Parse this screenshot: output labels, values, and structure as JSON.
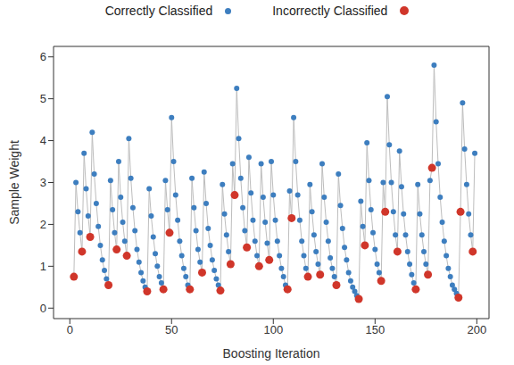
{
  "chart_data": {
    "type": "scatter",
    "x_label": "Boosting Iteration",
    "y_label": "Sample Weight",
    "legend": "top",
    "line_style": "solid",
    "xlim": [
      -8,
      206
    ],
    "xticks": [
      0,
      50,
      100,
      150,
      200
    ],
    "ylim": [
      -0.25,
      6.25
    ],
    "yticks": [
      0,
      1,
      2,
      3,
      4,
      5,
      6
    ],
    "x": [
      2,
      3,
      4,
      5,
      6,
      7,
      8,
      9,
      10,
      11,
      12,
      13,
      14,
      15,
      16,
      17,
      18,
      19,
      20,
      21,
      22,
      23,
      24,
      25,
      26,
      27,
      28,
      29,
      30,
      31,
      32,
      33,
      34,
      35,
      36,
      37,
      38,
      39,
      40,
      41,
      42,
      43,
      44,
      45,
      46,
      47,
      48,
      49,
      50,
      51,
      52,
      53,
      54,
      55,
      56,
      57,
      58,
      59,
      60,
      61,
      62,
      63,
      64,
      65,
      66,
      67,
      68,
      69,
      70,
      71,
      72,
      73,
      74,
      75,
      76,
      77,
      78,
      79,
      80,
      81,
      82,
      83,
      84,
      85,
      86,
      87,
      88,
      89,
      90,
      91,
      92,
      93,
      94,
      95,
      96,
      97,
      98,
      99,
      100,
      101,
      102,
      103,
      104,
      105,
      106,
      107,
      108,
      109,
      110,
      111,
      112,
      113,
      114,
      115,
      116,
      117,
      118,
      119,
      120,
      121,
      122,
      123,
      124,
      125,
      126,
      127,
      128,
      129,
      130,
      131,
      132,
      133,
      134,
      135,
      136,
      137,
      138,
      139,
      140,
      141,
      142,
      143,
      144,
      145,
      146,
      147,
      148,
      149,
      150,
      151,
      152,
      153,
      154,
      155,
      156,
      157,
      158,
      159,
      160,
      161,
      162,
      163,
      164,
      165,
      166,
      167,
      168,
      169,
      170,
      171,
      172,
      173,
      174,
      175,
      176,
      177,
      178,
      179,
      180,
      181,
      182,
      183,
      184,
      185,
      186,
      187,
      188,
      189,
      190,
      191,
      192,
      193,
      194,
      195,
      196,
      197,
      198,
      199
    ],
    "series": [
      {
        "name": "Correctly Classified",
        "color": "#3d7ebf",
        "marker": "circle",
        "values": [
          null,
          3.0,
          2.3,
          1.8,
          null,
          3.7,
          2.85,
          2.2,
          null,
          4.2,
          3.2,
          2.5,
          1.95,
          1.5,
          1.15,
          0.9,
          0.7,
          null,
          3.05,
          2.35,
          1.8,
          null,
          3.5,
          2.65,
          2.05,
          1.6,
          null,
          4.05,
          3.1,
          2.4,
          1.85,
          1.4,
          1.1,
          0.85,
          0.65,
          0.5,
          null,
          2.85,
          2.2,
          1.7,
          1.3,
          1.0,
          0.75,
          0.6,
          null,
          3.05,
          2.35,
          null,
          4.55,
          3.5,
          2.7,
          2.1,
          1.6,
          1.25,
          0.95,
          0.75,
          0.55,
          null,
          3.1,
          2.4,
          1.85,
          1.4,
          1.1,
          null,
          3.25,
          2.5,
          1.9,
          1.5,
          1.15,
          0.9,
          0.7,
          0.55,
          null,
          2.95,
          2.25,
          1.75,
          1.35,
          null,
          3.45,
          null,
          5.25,
          4.05,
          3.1,
          2.4,
          1.85,
          null,
          3.6,
          2.75,
          2.1,
          1.6,
          1.25,
          null,
          3.45,
          2.65,
          2.05,
          1.55,
          null,
          3.5,
          2.7,
          2.1,
          1.6,
          1.25,
          0.95,
          0.75,
          0.55,
          null,
          2.8,
          null,
          4.55,
          3.5,
          2.7,
          2.1,
          1.6,
          1.25,
          0.95,
          null,
          2.95,
          2.3,
          1.75,
          1.35,
          1.05,
          null,
          3.45,
          2.65,
          2.05,
          1.6,
          1.2,
          0.95,
          0.75,
          null,
          3.2,
          2.45,
          1.9,
          1.45,
          1.15,
          0.85,
          0.65,
          0.5,
          0.4,
          0.3,
          null,
          2.55,
          1.95,
          null,
          3.95,
          3.05,
          2.35,
          1.8,
          1.4,
          1.05,
          0.85,
          null,
          3.0,
          null,
          5.05,
          3.9,
          3.0,
          2.3,
          1.75,
          null,
          3.75,
          2.9,
          2.25,
          1.75,
          1.35,
          1.05,
          0.8,
          0.6,
          null,
          2.95,
          2.25,
          1.75,
          1.35,
          1.05,
          null,
          3.05,
          null,
          5.8,
          4.45,
          3.45,
          2.65,
          2.05,
          1.6,
          1.25,
          0.95,
          0.75,
          0.55,
          0.45,
          0.35,
          null,
          null,
          4.9,
          3.8,
          2.95,
          2.25,
          1.75,
          null,
          3.7
        ]
      },
      {
        "name": "Incorrectly Classified",
        "color": "#d0362a",
        "marker": "circle",
        "values": [
          0.75,
          null,
          null,
          null,
          1.35,
          null,
          null,
          null,
          1.7,
          null,
          null,
          null,
          null,
          null,
          null,
          null,
          null,
          0.55,
          null,
          null,
          null,
          1.4,
          null,
          null,
          null,
          null,
          1.25,
          null,
          null,
          null,
          null,
          null,
          null,
          null,
          null,
          null,
          0.4,
          null,
          null,
          null,
          null,
          null,
          null,
          null,
          0.45,
          null,
          null,
          1.8,
          null,
          null,
          null,
          null,
          null,
          null,
          null,
          null,
          null,
          0.45,
          null,
          null,
          null,
          null,
          null,
          0.85,
          null,
          null,
          null,
          null,
          null,
          null,
          null,
          null,
          0.42,
          null,
          null,
          null,
          null,
          1.05,
          null,
          2.7,
          null,
          null,
          null,
          null,
          null,
          1.45,
          null,
          null,
          null,
          null,
          null,
          1.0,
          null,
          null,
          null,
          null,
          1.15,
          null,
          null,
          null,
          null,
          null,
          null,
          null,
          null,
          0.45,
          null,
          2.15,
          null,
          null,
          null,
          null,
          null,
          null,
          null,
          0.75,
          null,
          null,
          null,
          null,
          null,
          0.8,
          null,
          null,
          null,
          null,
          null,
          null,
          null,
          0.55,
          null,
          null,
          null,
          null,
          null,
          null,
          null,
          null,
          null,
          null,
          0.22,
          null,
          null,
          1.5,
          null,
          null,
          null,
          null,
          null,
          null,
          null,
          0.65,
          null,
          2.3,
          null,
          null,
          null,
          null,
          null,
          1.35,
          null,
          null,
          null,
          null,
          null,
          null,
          null,
          null,
          0.45,
          null,
          null,
          null,
          null,
          null,
          0.8,
          null,
          3.35,
          null,
          null,
          null,
          null,
          null,
          null,
          null,
          null,
          null,
          null,
          null,
          null,
          0.25,
          2.3,
          null,
          null,
          null,
          null,
          null,
          1.35,
          null
        ]
      }
    ]
  }
}
